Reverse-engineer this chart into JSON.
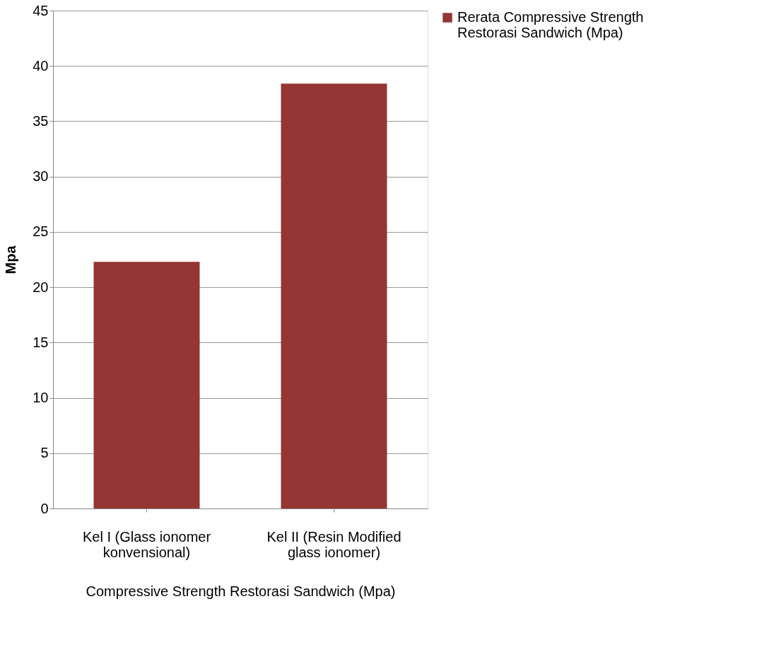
{
  "chart_data": {
    "type": "bar",
    "xlabel": "Compressive Strength Restorasi Sandwich (Mpa)",
    "ylabel": "Mpa",
    "categories": [
      "Kel I (Glass ionomer konvensional)",
      "Kel II (Resin Modified glass ionomer)"
    ],
    "series": [
      {
        "name": "Rerata Compressive Strength Restorasi Sandwich (Mpa)",
        "color": "#943634",
        "values": [
          22.3,
          38.4
        ]
      }
    ],
    "ylim": [
      0,
      45
    ],
    "yticks": [
      0,
      5,
      10,
      15,
      20,
      25,
      30,
      35,
      40,
      45
    ],
    "grid": "y",
    "legend": "right"
  }
}
